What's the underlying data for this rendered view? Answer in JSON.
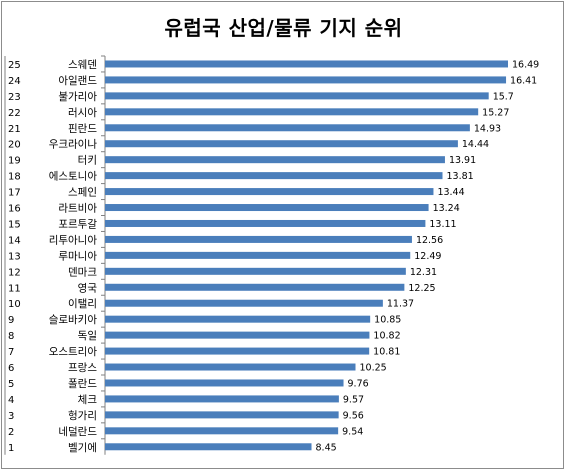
{
  "chart_data": {
    "type": "bar",
    "orientation": "horizontal",
    "title": "유럽국 산업/물류 기지 순위",
    "xlabel": "",
    "ylabel": "",
    "xlim": [
      0,
      18
    ],
    "grid": false,
    "legend": "none",
    "bar_color": "#4a7ebb",
    "categories": [
      "스웨덴",
      "아일랜드",
      "불가리아",
      "러시아",
      "핀란드",
      "우크라이나",
      "터키",
      "에스토니아",
      "스페인",
      "라트비아",
      "포르투갈",
      "리투아니아",
      "루마니아",
      "덴마크",
      "영국",
      "이탤리",
      "슬로바키아",
      "독일",
      "오스트리아",
      "프랑스",
      "폴란드",
      "체크",
      "헝가리",
      "네덜란드",
      "벨기에"
    ],
    "ranks": [
      "25",
      "24",
      "23",
      "22",
      "21",
      "20",
      "19",
      "18",
      "17",
      "16",
      "15",
      "14",
      "13",
      "12",
      "11",
      "10",
      "9",
      "8",
      "7",
      "6",
      "5",
      "4",
      "3",
      "2",
      "1"
    ],
    "values": [
      16.49,
      16.41,
      15.7,
      15.27,
      14.93,
      14.44,
      13.91,
      13.81,
      13.44,
      13.24,
      13.11,
      12.56,
      12.49,
      12.31,
      12.25,
      11.37,
      10.85,
      10.82,
      10.81,
      10.25,
      9.76,
      9.57,
      9.56,
      9.54,
      8.45
    ],
    "value_labels": [
      "16.49",
      "16.41",
      "15.7",
      "15.27",
      "14.93",
      "14.44",
      "13.91",
      "13.81",
      "13.44",
      "13.24",
      "13.11",
      "12.56",
      "12.49",
      "12.31",
      "12.25",
      "11.37",
      "10.85",
      "10.82",
      "10.81",
      "10.25",
      "9.76",
      "9.57",
      "9.56",
      "9.54",
      "8.45"
    ]
  }
}
